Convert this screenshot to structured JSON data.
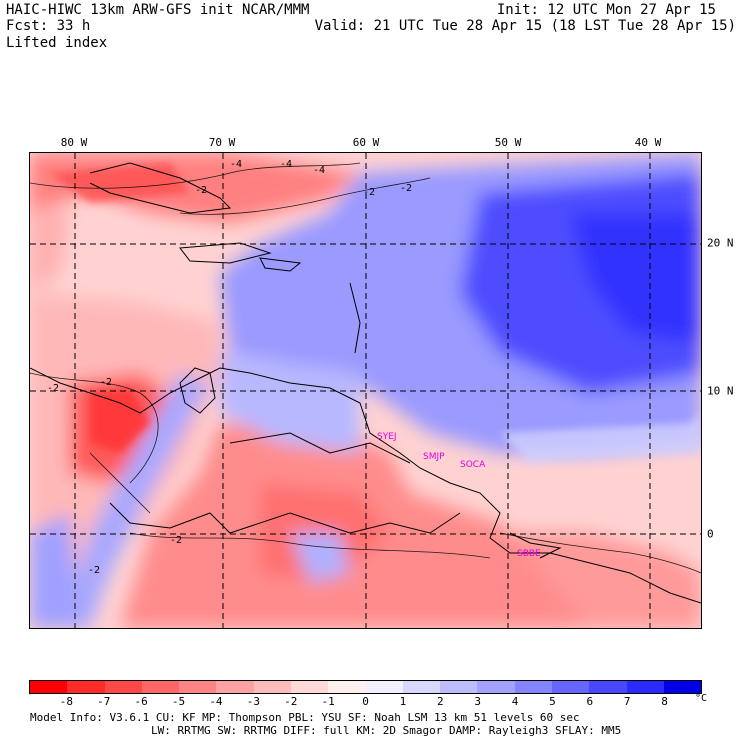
{
  "header": {
    "model_line": "HAIC-HIWC 13km ARW-GFS init   NCAR/MMM",
    "fcst_line": "Fcst:   33 h",
    "init_line": "Init: 12 UTC Mon 27 Apr 15",
    "valid_line": "Valid: 21 UTC Tue 28 Apr 15 (18 LST Tue 28 Apr 15)",
    "field": "Lifted index"
  },
  "map": {
    "lon_labels": [
      "80 W",
      "70 W",
      "60 W",
      "50 W",
      "40 W"
    ],
    "lat_labels": [
      "20 N",
      "10 N",
      "0"
    ],
    "stations": [
      "SYEJ",
      "SMJP",
      "SOCA",
      "SBBE"
    ],
    "contour_labels": [
      "-4",
      "-4",
      "-2",
      "-2",
      "-2",
      "-2",
      "-2",
      "-2",
      "-2",
      "-4"
    ],
    "colors": {
      "neg_strong": "#ff2020",
      "neg_light": "#ffc8c8",
      "pos_strong": "#2020ff",
      "pos_light": "#c8c8ff",
      "station": "#e000e0"
    }
  },
  "colorbar": {
    "labels": [
      "-8",
      "-7",
      "-6",
      "-5",
      "-4",
      "-3",
      "-2",
      "-1",
      "0",
      "1",
      "2",
      "3",
      "4",
      "5",
      "6",
      "7",
      "8"
    ],
    "unit": "°C",
    "colors": [
      "#ff0000",
      "#ff2a2a",
      "#ff4848",
      "#ff6666",
      "#ff8484",
      "#ffa2a2",
      "#ffbcbc",
      "#ffd8d8",
      "#fff0f0",
      "#f0f0ff",
      "#d8d8ff",
      "#bcbcff",
      "#a2a2ff",
      "#8484ff",
      "#6666ff",
      "#4848ff",
      "#2a2aff",
      "#0000e8"
    ]
  },
  "footer": {
    "line1": "Model Info: V3.6.1    CU: KF     MP: Thompson    PBL: YSU       SF: Noah LSM    13 km   51 levels  60 sec",
    "line2": "LW: RRTMG   SW: RRTMG  DIFF: full   KM: 2D Smagor DAMP: Rayleigh3  SFLAY: MM5"
  }
}
